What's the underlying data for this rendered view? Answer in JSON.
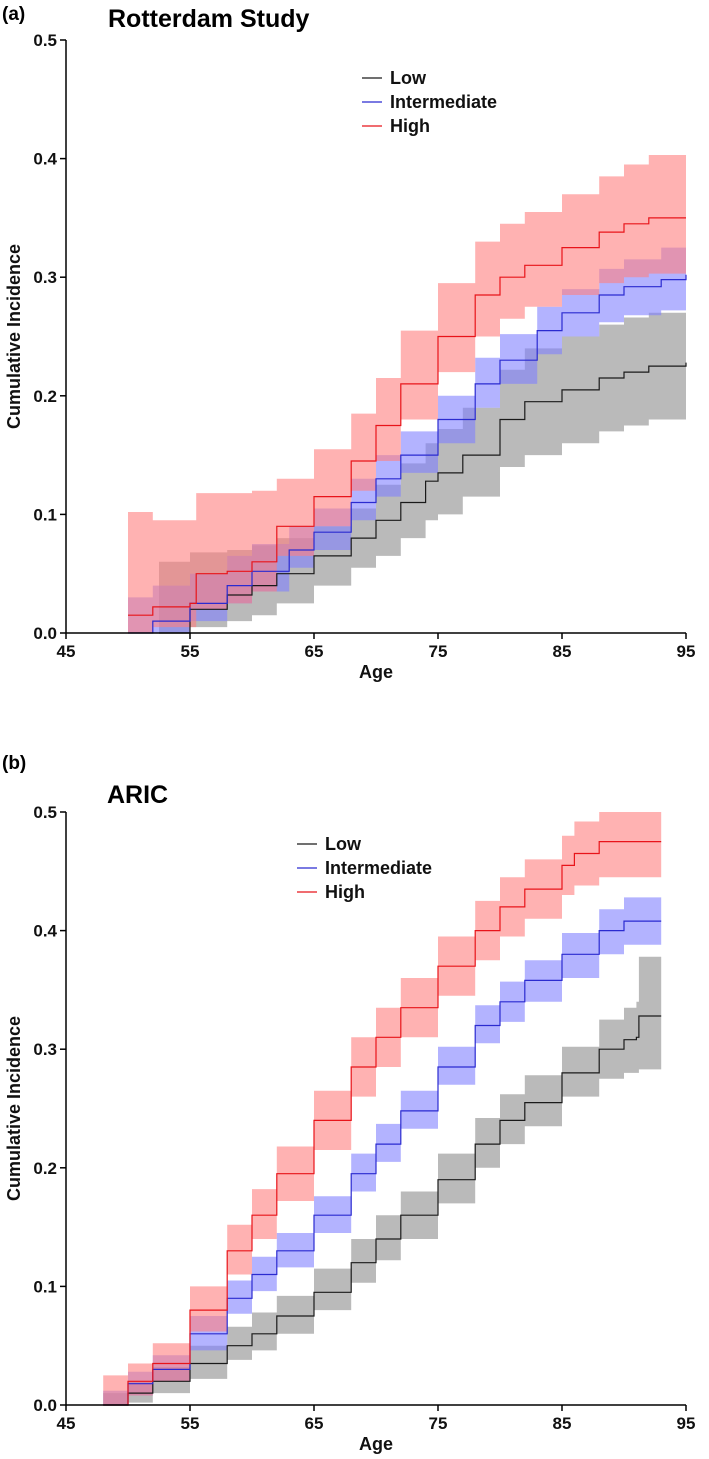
{
  "chart_data": [
    {
      "type": "line",
      "panel_label": "(a)",
      "title": "Rotterdam Study",
      "xlabel": "Age",
      "ylabel": "Cumulative Incidence",
      "xlim": [
        45,
        95
      ],
      "ylim": [
        0,
        0.5
      ],
      "xticks": [
        45,
        55,
        65,
        75,
        85,
        95
      ],
      "xtick_labels": [
        "45",
        "55",
        "65",
        "75",
        "85",
        "95"
      ],
      "yticks": [
        0,
        0.1,
        0.2,
        0.3,
        0.4,
        0.5
      ],
      "ytick_labels": [
        "0.0",
        "0.1",
        "0.2",
        "0.3",
        "0.4",
        "0.5"
      ],
      "legend_position": "top-center",
      "grid": false,
      "series": [
        {
          "name": "Low",
          "color": "#1a1a1a",
          "band_color": "#8c8c8c",
          "x": [
            52.5,
            55,
            58,
            60,
            62,
            65,
            68,
            70,
            72,
            74,
            75,
            77,
            80,
            82,
            85,
            88,
            90,
            92,
            95
          ],
          "y": [
            0.0,
            0.02,
            0.032,
            0.04,
            0.05,
            0.065,
            0.08,
            0.095,
            0.11,
            0.128,
            0.135,
            0.15,
            0.18,
            0.195,
            0.205,
            0.215,
            0.22,
            0.225,
            0.228
          ],
          "lower": [
            0.0,
            0.005,
            0.01,
            0.015,
            0.025,
            0.04,
            0.055,
            0.065,
            0.08,
            0.095,
            0.1,
            0.115,
            0.14,
            0.15,
            0.16,
            0.17,
            0.175,
            0.18,
            0.19
          ],
          "upper": [
            0.06,
            0.068,
            0.07,
            0.074,
            0.08,
            0.09,
            0.105,
            0.125,
            0.143,
            0.16,
            0.172,
            0.19,
            0.222,
            0.24,
            0.25,
            0.26,
            0.266,
            0.27,
            0.277
          ]
        },
        {
          "name": "Intermediate",
          "color": "#2b2bd0",
          "band_color": "#8080ff",
          "x": [
            50,
            52,
            55,
            58,
            60,
            63,
            65,
            68,
            70,
            72,
            75,
            78,
            80,
            83,
            85,
            88,
            90,
            93,
            95
          ],
          "y": [
            0.0,
            0.01,
            0.025,
            0.04,
            0.052,
            0.07,
            0.085,
            0.11,
            0.13,
            0.15,
            0.18,
            0.21,
            0.23,
            0.255,
            0.27,
            0.285,
            0.292,
            0.298,
            0.302
          ],
          "lower": [
            0.0,
            0.0,
            0.01,
            0.025,
            0.035,
            0.055,
            0.07,
            0.095,
            0.115,
            0.135,
            0.16,
            0.19,
            0.21,
            0.235,
            0.25,
            0.262,
            0.268,
            0.272,
            0.275
          ],
          "upper": [
            0.03,
            0.04,
            0.05,
            0.065,
            0.075,
            0.09,
            0.105,
            0.13,
            0.15,
            0.17,
            0.2,
            0.232,
            0.252,
            0.275,
            0.29,
            0.307,
            0.315,
            0.325,
            0.33
          ]
        },
        {
          "name": "High",
          "color": "#e8141a",
          "band_color": "#ff7f7f",
          "x": [
            50,
            52,
            55,
            55.5,
            58,
            60,
            62,
            65,
            68,
            70,
            72,
            75,
            78,
            80,
            82,
            85,
            88,
            90,
            92,
            95
          ],
          "y": [
            0.015,
            0.022,
            0.025,
            0.05,
            0.052,
            0.06,
            0.09,
            0.115,
            0.145,
            0.175,
            0.21,
            0.25,
            0.285,
            0.3,
            0.31,
            0.325,
            0.338,
            0.345,
            0.35,
            0.35
          ],
          "lower": [
            0.0,
            0.005,
            0.005,
            0.02,
            0.025,
            0.035,
            0.065,
            0.09,
            0.12,
            0.145,
            0.18,
            0.22,
            0.25,
            0.265,
            0.275,
            0.285,
            0.295,
            0.3,
            0.303,
            0.305
          ],
          "upper": [
            0.102,
            0.095,
            0.095,
            0.118,
            0.118,
            0.12,
            0.13,
            0.155,
            0.185,
            0.215,
            0.255,
            0.295,
            0.33,
            0.345,
            0.355,
            0.37,
            0.385,
            0.395,
            0.403,
            0.403
          ]
        }
      ]
    },
    {
      "type": "line",
      "panel_label": "(b)",
      "title": "ARIC",
      "xlabel": "Age",
      "ylabel": "Cumulative Incidence",
      "xlim": [
        45,
        95
      ],
      "ylim": [
        0,
        0.5
      ],
      "xticks": [
        45,
        55,
        65,
        75,
        85,
        95
      ],
      "xtick_labels": [
        "45",
        "55",
        "65",
        "75",
        "85",
        "95"
      ],
      "yticks": [
        0,
        0.1,
        0.2,
        0.3,
        0.4,
        0.5
      ],
      "ytick_labels": [
        "0.0",
        "0.1",
        "0.2",
        "0.3",
        "0.4",
        "0.5"
      ],
      "legend_position": "top-center",
      "grid": false,
      "series": [
        {
          "name": "Low",
          "color": "#1a1a1a",
          "band_color": "#8c8c8c",
          "x": [
            48,
            50,
            52,
            55,
            58,
            60,
            62,
            65,
            68,
            70,
            72,
            75,
            78,
            80,
            82,
            85,
            88,
            90,
            91,
            91.2,
            93
          ],
          "y": [
            0.0,
            0.01,
            0.02,
            0.035,
            0.05,
            0.06,
            0.075,
            0.095,
            0.12,
            0.14,
            0.16,
            0.19,
            0.22,
            0.24,
            0.255,
            0.28,
            0.3,
            0.308,
            0.31,
            0.328,
            0.328
          ],
          "lower": [
            0.0,
            0.002,
            0.01,
            0.022,
            0.038,
            0.046,
            0.06,
            0.08,
            0.103,
            0.122,
            0.14,
            0.17,
            0.2,
            0.22,
            0.235,
            0.26,
            0.275,
            0.28,
            0.28,
            0.283,
            0.283
          ],
          "upper": [
            0.01,
            0.02,
            0.032,
            0.05,
            0.066,
            0.078,
            0.092,
            0.115,
            0.14,
            0.16,
            0.18,
            0.212,
            0.242,
            0.262,
            0.278,
            0.302,
            0.325,
            0.335,
            0.34,
            0.378,
            0.378
          ]
        },
        {
          "name": "Intermediate",
          "color": "#2b2bd0",
          "band_color": "#8080ff",
          "x": [
            48,
            50,
            52,
            55,
            58,
            60,
            62,
            65,
            68,
            70,
            72,
            75,
            78,
            80,
            82,
            85,
            88,
            90,
            93
          ],
          "y": [
            0.0,
            0.018,
            0.03,
            0.06,
            0.09,
            0.11,
            0.13,
            0.16,
            0.195,
            0.22,
            0.248,
            0.285,
            0.32,
            0.34,
            0.358,
            0.38,
            0.4,
            0.408,
            0.408
          ],
          "lower": [
            0.0,
            0.008,
            0.02,
            0.046,
            0.077,
            0.096,
            0.116,
            0.145,
            0.18,
            0.205,
            0.233,
            0.27,
            0.305,
            0.323,
            0.34,
            0.36,
            0.38,
            0.388,
            0.388
          ],
          "upper": [
            0.012,
            0.028,
            0.042,
            0.075,
            0.105,
            0.125,
            0.145,
            0.176,
            0.212,
            0.237,
            0.265,
            0.302,
            0.337,
            0.357,
            0.375,
            0.398,
            0.418,
            0.428,
            0.428
          ]
        },
        {
          "name": "High",
          "color": "#e8141a",
          "band_color": "#ff7f7f",
          "x": [
            48,
            50,
            52,
            55,
            58,
            60,
            62,
            65,
            68,
            70,
            72,
            75,
            78,
            80,
            82,
            85,
            86,
            88,
            93
          ],
          "y": [
            0.0,
            0.02,
            0.035,
            0.08,
            0.13,
            0.16,
            0.195,
            0.24,
            0.285,
            0.31,
            0.335,
            0.37,
            0.4,
            0.42,
            0.435,
            0.455,
            0.465,
            0.475,
            0.475
          ],
          "lower": [
            0.0,
            0.008,
            0.02,
            0.062,
            0.11,
            0.14,
            0.172,
            0.215,
            0.26,
            0.285,
            0.31,
            0.345,
            0.375,
            0.395,
            0.41,
            0.43,
            0.438,
            0.445,
            0.445
          ],
          "upper": [
            0.025,
            0.035,
            0.052,
            0.1,
            0.152,
            0.182,
            0.218,
            0.265,
            0.31,
            0.335,
            0.36,
            0.395,
            0.425,
            0.445,
            0.46,
            0.48,
            0.492,
            0.5,
            0.5
          ]
        }
      ]
    }
  ]
}
